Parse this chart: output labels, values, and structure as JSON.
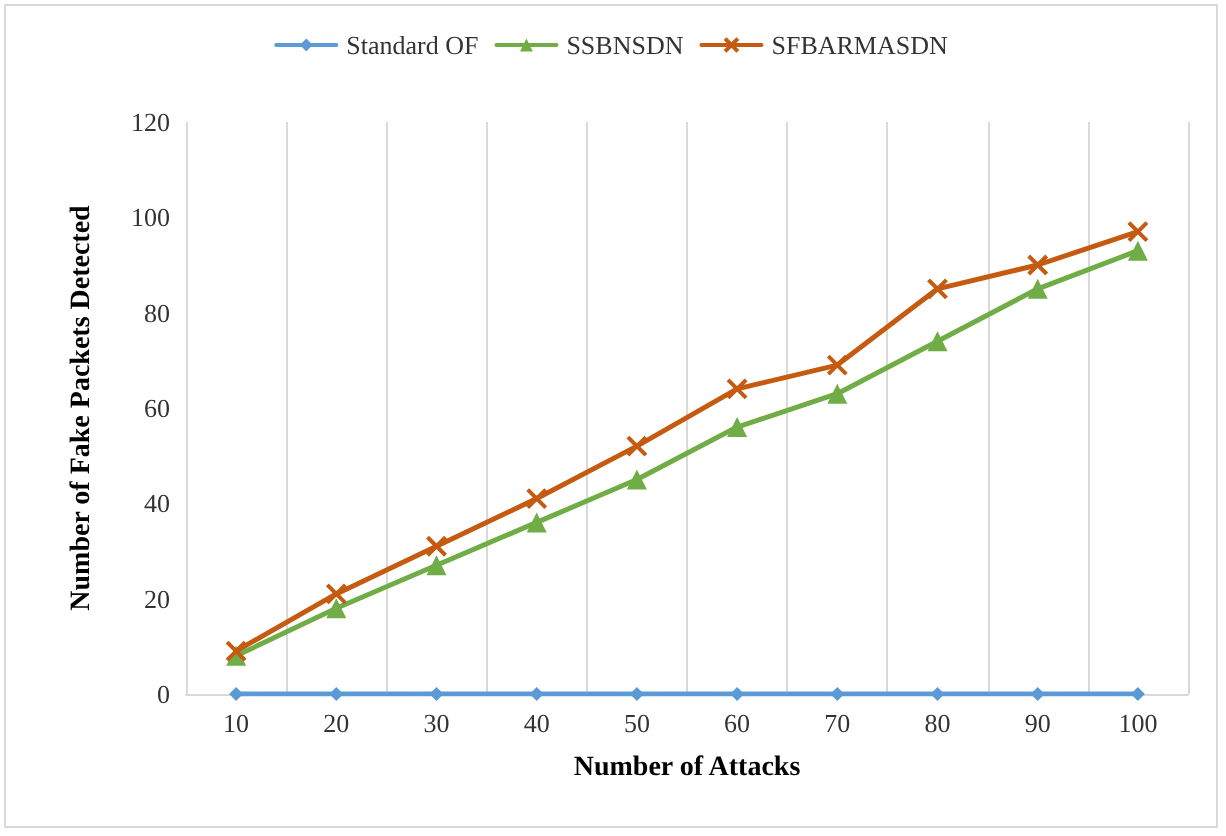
{
  "chart_data": {
    "type": "line",
    "xlabel": "Number of Attacks",
    "ylabel": "Number of Fake Packets Detected",
    "categories": [
      "10",
      "20",
      "30",
      "40",
      "50",
      "60",
      "70",
      "80",
      "90",
      "100"
    ],
    "series": [
      {
        "name": "Standard OF",
        "color": "#5b9bd5",
        "marker": "diamond",
        "values": [
          0,
          0,
          0,
          0,
          0,
          0,
          0,
          0,
          0,
          0
        ]
      },
      {
        "name": "SSBNSDN",
        "color": "#70ad47",
        "marker": "triangle",
        "values": [
          8,
          18,
          27,
          36,
          45,
          56,
          63,
          74,
          85,
          93
        ]
      },
      {
        "name": "SFBARMASDN",
        "color": "#c55a11",
        "marker": "cross",
        "values": [
          9,
          21,
          31,
          41,
          52,
          64,
          69,
          85,
          90,
          97
        ]
      }
    ],
    "ylim": [
      0,
      120
    ],
    "yticks": [
      0,
      20,
      40,
      60,
      80,
      100,
      120
    ],
    "grid": "x",
    "legend": "top",
    "line_style": "solid"
  }
}
